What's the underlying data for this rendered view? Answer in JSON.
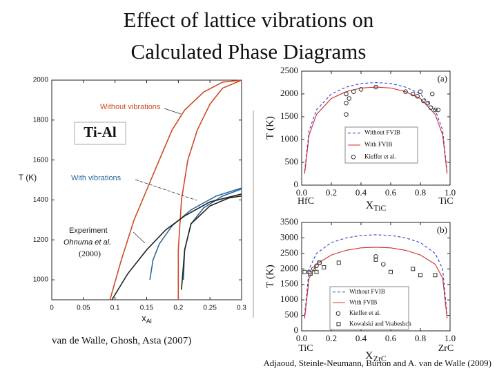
{
  "slide": {
    "title_lines": [
      "Effect of lattice vibrations on",
      "Calculated Phase Diagrams"
    ],
    "system_label": "Ti-Al",
    "experiment_source": [
      "Ohnuma et al.",
      "(2000)"
    ],
    "citations": [
      "van de Walle, Ghosh, Asta (2007)",
      "Adjaoud, Steinle-Neumann, Burton and A. van de Walle (2009)"
    ]
  },
  "chart_data": [
    {
      "type": "line",
      "y_label": "T (K)",
      "x_label": {
        "main": "x",
        "sub": "Al"
      },
      "xlim": [
        0,
        0.3
      ],
      "xticks": [
        0,
        0.05,
        0.1,
        0.15,
        0.2,
        0.25,
        0.3
      ],
      "ylim": [
        900,
        2000
      ],
      "yticks": [
        1000,
        1200,
        1400,
        1600,
        1800,
        2000
      ],
      "series": [
        {
          "name": "Without vibrations",
          "color": "#cf4a23",
          "x": [
            0.092,
            0.11,
            0.13,
            0.15,
            0.17,
            0.19,
            0.21,
            0.24,
            0.27,
            0.3,
            null,
            0.2,
            0.2,
            0.205,
            0.215,
            0.23,
            0.25,
            0.27,
            0.3
          ],
          "values": [
            900,
            1100,
            1300,
            1450,
            1600,
            1750,
            1850,
            1940,
            1990,
            2000,
            null,
            900,
            1150,
            1400,
            1600,
            1750,
            1880,
            1960,
            2000
          ]
        },
        {
          "name": "With vibrations",
          "color": "#2b6aa0",
          "x": [
            0.155,
            0.16,
            0.17,
            0.19,
            0.22,
            0.26,
            0.3,
            null,
            0.208,
            0.21,
            0.22,
            0.24,
            0.27,
            0.3
          ],
          "values": [
            1000,
            1100,
            1180,
            1270,
            1350,
            1420,
            1460,
            null,
            1000,
            1150,
            1280,
            1360,
            1420,
            1455
          ]
        },
        {
          "name": "Experiment",
          "color": "#222222",
          "x": [
            0.095,
            0.12,
            0.15,
            0.18,
            0.21,
            0.25,
            0.3,
            null,
            0.205,
            0.21,
            0.22,
            0.25,
            0.28,
            0.3
          ],
          "values": [
            900,
            1030,
            1150,
            1250,
            1320,
            1390,
            1430,
            null,
            950,
            1150,
            1280,
            1370,
            1410,
            1420
          ]
        }
      ]
    },
    {
      "type": "line",
      "panel_label": "(a)",
      "y_label": "T (K)",
      "x_label": {
        "main": "X",
        "sub": "TiC"
      },
      "end_labels": [
        "HfC",
        "TiC"
      ],
      "xlim": [
        0,
        1
      ],
      "xticks": [
        {
          "value": 0,
          "label": "0.0"
        },
        0.2,
        0.4,
        0.6,
        0.8,
        {
          "value": 1,
          "label": "1.0"
        }
      ],
      "ylim": [
        0,
        2500
      ],
      "yticks": [
        0,
        500,
        1000,
        1500,
        2000,
        2500
      ],
      "legend": "lower center",
      "series": [
        {
          "name": "Without FVIB",
          "color": "#2f3fd0",
          "dash": true,
          "x": [
            0.02,
            0.05,
            0.1,
            0.2,
            0.3,
            0.4,
            0.5,
            0.6,
            0.7,
            0.8,
            0.9,
            0.95,
            0.98
          ],
          "values": [
            300,
            1200,
            1650,
            2000,
            2150,
            2230,
            2250,
            2230,
            2150,
            2000,
            1650,
            1200,
            300
          ]
        },
        {
          "name": "With FVIB",
          "color": "#d42a2a",
          "x": [
            0.02,
            0.05,
            0.1,
            0.2,
            0.3,
            0.4,
            0.5,
            0.6,
            0.7,
            0.8,
            0.9,
            0.95,
            0.98
          ],
          "values": [
            250,
            1100,
            1550,
            1900,
            2050,
            2130,
            2150,
            2130,
            2050,
            1900,
            1550,
            1100,
            250
          ]
        },
        {
          "name": "Kieffer et al.",
          "color": "#333333",
          "marker": "circle",
          "x": [
            0.3,
            0.3,
            0.32,
            0.3,
            0.35,
            0.4,
            0.5,
            0.7,
            0.75,
            0.78,
            0.82,
            0.85,
            0.87,
            0.9,
            0.92,
            0.88,
            0.8
          ],
          "values": [
            1550,
            1800,
            1900,
            2000,
            2050,
            2100,
            2150,
            2050,
            2000,
            1950,
            1850,
            1800,
            1700,
            1650,
            1650,
            2000,
            2050
          ]
        }
      ]
    },
    {
      "type": "line",
      "panel_label": "(b)",
      "y_label": "T (K)",
      "x_label": {
        "main": "X",
        "sub": "ZrC"
      },
      "end_labels": [
        "TiC",
        "ZrC"
      ],
      "xlim": [
        0,
        1
      ],
      "xticks": [
        {
          "value": 0,
          "label": "0.0"
        },
        0.2,
        0.4,
        0.6,
        0.8,
        {
          "value": 1,
          "label": "1.0"
        }
      ],
      "ylim": [
        0,
        3500
      ],
      "yticks": [
        0,
        500,
        1000,
        1500,
        2000,
        2500,
        3000,
        3500
      ],
      "legend": "lower center",
      "series": [
        {
          "name": "Without FVIB",
          "color": "#2f3fd0",
          "dash": true,
          "x": [
            0.02,
            0.05,
            0.1,
            0.2,
            0.3,
            0.4,
            0.5,
            0.6,
            0.7,
            0.8,
            0.9,
            0.95,
            0.98
          ],
          "values": [
            500,
            2000,
            2500,
            2850,
            3000,
            3080,
            3100,
            3080,
            3000,
            2850,
            2500,
            2000,
            500
          ]
        },
        {
          "name": "With FVIB",
          "color": "#d42a2a",
          "x": [
            0.02,
            0.05,
            0.1,
            0.2,
            0.3,
            0.4,
            0.5,
            0.6,
            0.7,
            0.8,
            0.9,
            0.95,
            0.98
          ],
          "values": [
            400,
            1700,
            2150,
            2450,
            2600,
            2680,
            2700,
            2680,
            2600,
            2450,
            2150,
            1700,
            400
          ]
        },
        {
          "name": "Kieffer et al.",
          "color": "#333333",
          "marker": "circle",
          "x": [
            0.05,
            0.08,
            0.1,
            0.12,
            0.5,
            0.55
          ],
          "values": [
            1900,
            2000,
            2100,
            2200,
            2400,
            2150
          ]
        },
        {
          "name": "Kowalski and Vrabeshch",
          "color": "#333333",
          "marker": "square",
          "x": [
            0.02,
            0.06,
            0.1,
            0.12,
            0.15,
            0.25,
            0.5,
            0.6,
            0.75,
            0.8,
            0.9
          ],
          "values": [
            1900,
            1850,
            1900,
            2200,
            2050,
            2200,
            2300,
            1900,
            2000,
            1800,
            1800
          ]
        }
      ]
    }
  ]
}
